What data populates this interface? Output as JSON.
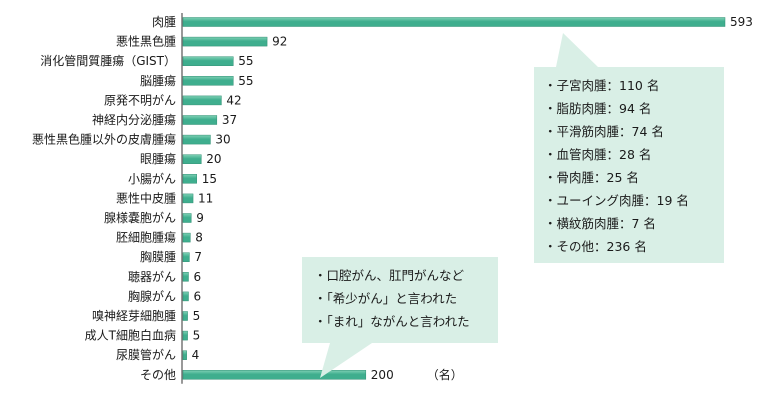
{
  "chart_data": {
    "type": "bar",
    "orientation": "horizontal",
    "title": "",
    "xlabel": "",
    "ylabel": "",
    "unit": "（名）",
    "categories": [
      "肉腫",
      "悪性黒色腫",
      "消化管間質腫瘍（GIST）",
      "脳腫瘍",
      "原発不明がん",
      "神経内分泌腫瘍",
      "悪性黒色腫以外の皮膚腫瘍",
      "眼腫瘍",
      "小腸がん",
      "悪性中皮腫",
      "腺様嚢胞がん",
      "胚細胞腫瘍",
      "胸膜腫",
      "聴器がん",
      "胸腺がん",
      "嗅神経芽細胞腫",
      "成人T細胞白血病",
      "尿膜管がん",
      "その他"
    ],
    "values": [
      593,
      92,
      55,
      55,
      42,
      37,
      30,
      20,
      15,
      11,
      9,
      8,
      7,
      6,
      6,
      5,
      5,
      4,
      200
    ],
    "xlim": [
      0,
      593
    ],
    "grid": false,
    "legend": "none",
    "colors": {
      "bar": "#3fae8e",
      "bar_highlight": "#7fd1b5",
      "callout_bg": "#d9efe6",
      "text": "#1a1a1a"
    },
    "annotations": [
      {
        "target": "肉腫",
        "lines": [
          "・子宮肉腫：110 名",
          "・脂肪肉腫：94 名",
          "・平滑筋肉腫：74 名",
          "・血管肉腫：28 名",
          "・骨肉腫：25 名",
          "・ユーイング肉腫：19 名",
          "・横紋筋肉腫：7 名",
          "・その他：236 名"
        ]
      },
      {
        "target": "その他",
        "lines": [
          "・口腔がん、肛門がんなど",
          "・「希少がん」と言われた",
          "・「まれ」ながんと言われた"
        ]
      }
    ]
  }
}
